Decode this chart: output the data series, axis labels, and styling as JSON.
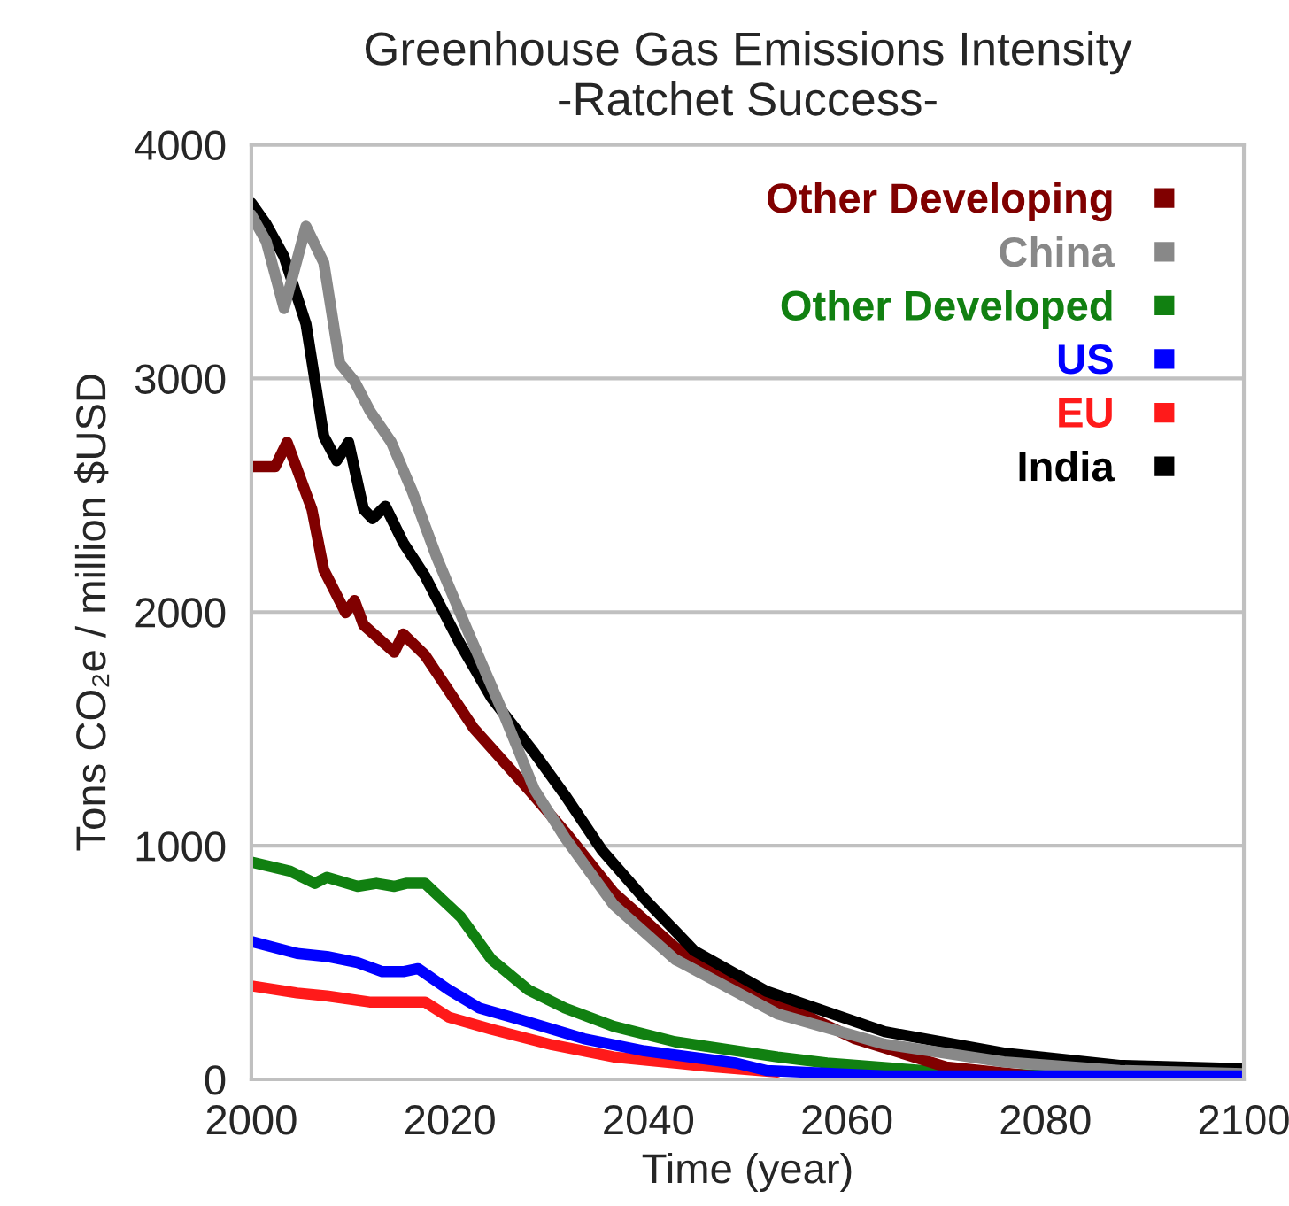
{
  "chart_data": {
    "type": "line",
    "title": "Greenhouse Gas Emissions Intensity\n-Ratchet Success-",
    "xlabel": "Time (year)",
    "ylabel": "Tons CO₂e / million $USD",
    "xlim": [
      2000,
      2100
    ],
    "xticks": [
      2000,
      2020,
      2040,
      2060,
      2080,
      2100
    ],
    "ylim": [
      0,
      4000
    ],
    "yticks": [
      0,
      1000,
      2000,
      3000,
      4000
    ],
    "grid": "y",
    "legend": "top right",
    "line_style": "solid",
    "marker": "none",
    "series": [
      {
        "name": "Other Developing",
        "color": "#800000",
        "x": [
          2000,
          2002.4,
          2003.6,
          2006.1,
          2007.3,
          2009.5,
          2010.4,
          2011.3,
          2014.4,
          2015.3,
          2017.5,
          2022.4,
          2027.9,
          2031.6,
          2036.5,
          2042.7,
          2053,
          2060.8,
          2070,
          2080,
          2100
        ],
        "values": [
          2622,
          2622,
          2727,
          2440,
          2180,
          1997,
          2049,
          1945,
          1828,
          1906,
          1815,
          1503,
          1242,
          1060,
          800,
          565,
          331,
          174,
          53,
          10,
          5
        ]
      },
      {
        "name": "China",
        "color": "#888888",
        "x": [
          2000,
          2001.5,
          2003.3,
          2005.5,
          2007.3,
          2008.9,
          2010.4,
          2012,
          2014.1,
          2016.2,
          2018.7,
          2021.8,
          2025.5,
          2028.5,
          2031.6,
          2036.5,
          2042.7,
          2053,
          2063.8,
          2075.8,
          2087.5,
          2100
        ],
        "values": [
          3700,
          3586,
          3299,
          3651,
          3495,
          3065,
          2987,
          2857,
          2727,
          2518,
          2232,
          1919,
          1555,
          1242,
          1034,
          747,
          513,
          280,
          151,
          75,
          38,
          25
        ]
      },
      {
        "name": "Other Developed",
        "color": "#118011",
        "x": [
          2000,
          2003.9,
          2006.4,
          2007.6,
          2010.7,
          2012.6,
          2014.4,
          2015.6,
          2017.5,
          2021.1,
          2024.2,
          2027.9,
          2031.6,
          2036.5,
          2042.7,
          2053,
          2058,
          2070,
          2082,
          2100
        ],
        "values": [
          930,
          891,
          839,
          865,
          826,
          839,
          826,
          839,
          839,
          695,
          513,
          383,
          305,
          227,
          161,
          96,
          70,
          30,
          15,
          10
        ]
      },
      {
        "name": "US",
        "color": "#0000ff",
        "x": [
          2000,
          2004.6,
          2007.6,
          2010.7,
          2013.2,
          2015.3,
          2016.8,
          2019.9,
          2023,
          2027.3,
          2033.5,
          2039.6,
          2048.8,
          2051.9,
          2063.8,
          2080,
          2100
        ],
        "values": [
          590,
          539,
          526,
          500,
          461,
          461,
          474,
          383,
          305,
          253,
          174,
          122,
          70,
          38,
          15,
          15,
          15
        ]
      },
      {
        "name": "EU",
        "color": "#ff1a1a",
        "x": [
          2000,
          2004.6,
          2007.6,
          2011.9,
          2017.5,
          2019.9,
          2024.2,
          2030.3,
          2036.5,
          2045.7,
          2053
        ],
        "values": [
          400,
          370,
          357,
          331,
          331,
          266,
          214,
          148,
          96,
          57,
          31
        ]
      },
      {
        "name": "India",
        "color": "#000000",
        "x": [
          2000,
          2001.5,
          2003.3,
          2005.5,
          2007.3,
          2008.6,
          2009.8,
          2011.3,
          2012.2,
          2013.5,
          2015.3,
          2017.5,
          2021,
          2024.2,
          2028.5,
          2031.6,
          2035.3,
          2039.6,
          2044.6,
          2051.9,
          2063.8,
          2075.8,
          2087.5,
          2093.6,
          2100
        ],
        "values": [
          3750,
          3660,
          3520,
          3234,
          2752,
          2648,
          2727,
          2440,
          2400,
          2453,
          2297,
          2154,
          1867,
          1633,
          1398,
          1216,
          982,
          773,
          551,
          377,
          204,
          113,
          60,
          53,
          45
        ]
      }
    ]
  }
}
